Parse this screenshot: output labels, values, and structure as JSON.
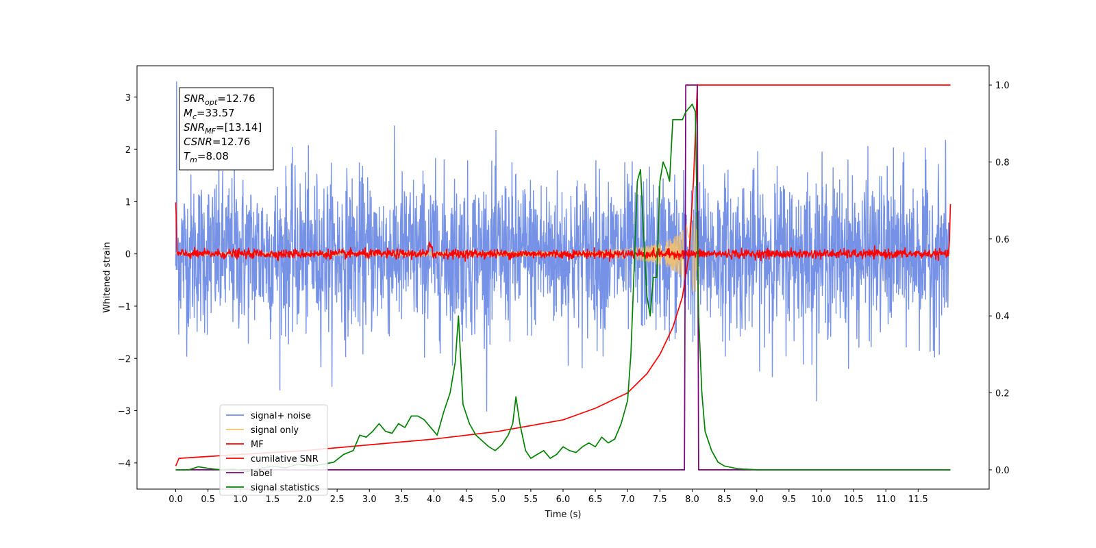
{
  "chart_data": {
    "type": "line",
    "xlabel": "Time (s)",
    "ylabel": "Whitened strain",
    "y2label": "",
    "xlim": [
      -0.6,
      12.6
    ],
    "ylim": [
      -4.5,
      3.6
    ],
    "y2lim": [
      -0.05,
      1.05
    ],
    "x_ticks": [
      0.0,
      0.5,
      1.0,
      1.5,
      2.0,
      2.5,
      3.0,
      3.5,
      4.0,
      4.5,
      5.0,
      5.5,
      6.0,
      6.5,
      7.0,
      7.5,
      8.0,
      8.5,
      9.0,
      9.5,
      10.0,
      10.5,
      11.0,
      11.5
    ],
    "x_tick_labels": [
      "0.0",
      "0.5",
      "1.0",
      "1.5",
      "2.0",
      "2.5",
      "3.0",
      "3.5",
      "4.0",
      "4.5",
      "5.0",
      "5.5",
      "6.0",
      "6.5",
      "7.0",
      "7.5",
      "8.0",
      "8.5",
      "9.0",
      "9.5",
      "10.0",
      "10.5",
      "11.0",
      "11.5"
    ],
    "y_ticks": [
      3,
      2,
      1,
      0,
      -1,
      -2,
      -3,
      -4
    ],
    "y_tick_labels": [
      "3",
      "2",
      "1",
      "0",
      "−1",
      "−2",
      "−3",
      "−4"
    ],
    "y2_ticks": [
      1.0,
      0.8,
      0.6,
      0.4,
      0.2,
      0.0
    ],
    "y2_tick_labels": [
      "1.0",
      "0.8",
      "0.6",
      "0.4",
      "0.2",
      "0.0"
    ],
    "legend_placement": "lower-left",
    "annotation": {
      "lines": [
        {
          "main": "SNR",
          "sub": "opt",
          "value": "=12.76"
        },
        {
          "main": "M",
          "sub": "c",
          "value": "=33.57"
        },
        {
          "main": "SNR",
          "sub": "MF",
          "value": "=[13.14]"
        },
        {
          "main": "CSNR",
          "sub": "",
          "value": "=12.76"
        },
        {
          "main": "T",
          "sub": "m",
          "value": "=8.08"
        }
      ]
    },
    "series": [
      {
        "name": "signal+ noise",
        "color": "#6f8ce6",
        "axis": "left",
        "description_values": {
          "x_range": [
            0,
            11.98
          ],
          "band_min": -3.2,
          "band_max": 3.4,
          "typical_low": -1.3,
          "typical_high": 1.4
        }
      },
      {
        "name": "signal only",
        "color": "#f5c26b",
        "axis": "left",
        "envelope": {
          "x": [
            0,
            6.5,
            7.0,
            7.3,
            7.6,
            7.8,
            7.95,
            8.05,
            8.1,
            12.0
          ],
          "amp": [
            0.03,
            0.05,
            0.1,
            0.15,
            0.25,
            0.4,
            0.6,
            0.8,
            0.0,
            0.0
          ]
        }
      },
      {
        "name": "MF",
        "color": "#ff0000",
        "axis": "left",
        "description_values": {
          "x_range": [
            0,
            12.0
          ],
          "noise_amp": 0.12,
          "start_value": 1.0,
          "end_value": 0.95
        }
      },
      {
        "name": "cumilative SNR",
        "color": "#ff0000",
        "axis": "right",
        "x": [
          0,
          0.05,
          1.0,
          2.0,
          3.0,
          4.0,
          5.0,
          6.0,
          6.5,
          7.0,
          7.3,
          7.5,
          7.7,
          7.85,
          7.95,
          8.02,
          8.08,
          8.1,
          12.0
        ],
        "y": [
          0.01,
          0.03,
          0.04,
          0.05,
          0.065,
          0.08,
          0.1,
          0.13,
          0.16,
          0.2,
          0.25,
          0.3,
          0.37,
          0.45,
          0.56,
          0.75,
          1.0,
          1.0,
          1.0
        ]
      },
      {
        "name": "label",
        "color": "#800080",
        "axis": "right",
        "x": [
          0,
          7.88,
          7.9,
          8.08,
          8.1,
          12.0
        ],
        "y": [
          0,
          0,
          1,
          1,
          0,
          0
        ]
      },
      {
        "name": "signal statistics",
        "color": "#008000",
        "axis": "right",
        "x": [
          0,
          0.2,
          0.35,
          0.5,
          0.7,
          0.9,
          1.1,
          1.3,
          1.5,
          1.7,
          1.9,
          2.1,
          2.3,
          2.45,
          2.6,
          2.75,
          2.85,
          2.95,
          3.05,
          3.15,
          3.25,
          3.35,
          3.45,
          3.55,
          3.65,
          3.75,
          3.85,
          3.95,
          4.05,
          4.15,
          4.25,
          4.33,
          4.38,
          4.45,
          4.55,
          4.65,
          4.75,
          4.85,
          4.95,
          5.05,
          5.15,
          5.22,
          5.27,
          5.33,
          5.42,
          5.5,
          5.6,
          5.7,
          5.8,
          5.9,
          6.0,
          6.1,
          6.2,
          6.3,
          6.4,
          6.5,
          6.6,
          6.7,
          6.8,
          6.9,
          7.0,
          7.05,
          7.1,
          7.15,
          7.2,
          7.25,
          7.3,
          7.35,
          7.4,
          7.45,
          7.5,
          7.55,
          7.6,
          7.65,
          7.7,
          7.75,
          7.8,
          7.85,
          7.9,
          7.95,
          8.0,
          8.05,
          8.1,
          8.15,
          8.2,
          8.3,
          8.4,
          8.5,
          8.7,
          9.0,
          9.5,
          10.0,
          11.0,
          12.0
        ],
        "y": [
          0,
          0,
          0.008,
          0.004,
          0,
          0.002,
          -0.005,
          0.003,
          0.01,
          0.005,
          0.015,
          0.01,
          0.015,
          0.02,
          0.04,
          0.05,
          0.09,
          0.085,
          0.1,
          0.12,
          0.1,
          0.095,
          0.12,
          0.11,
          0.14,
          0.14,
          0.13,
          0.11,
          0.09,
          0.15,
          0.2,
          0.28,
          0.4,
          0.17,
          0.12,
          0.09,
          0.075,
          0.06,
          0.05,
          0.065,
          0.09,
          0.12,
          0.19,
          0.12,
          0.05,
          0.03,
          0.04,
          0.05,
          0.03,
          0.04,
          0.06,
          0.05,
          0.045,
          0.06,
          0.07,
          0.06,
          0.085,
          0.07,
          0.08,
          0.12,
          0.18,
          0.3,
          0.52,
          0.75,
          0.78,
          0.6,
          0.45,
          0.4,
          0.5,
          0.5,
          0.75,
          0.8,
          0.78,
          0.75,
          0.91,
          0.91,
          0.91,
          0.91,
          0.93,
          0.94,
          0.95,
          0.93,
          0.4,
          0.2,
          0.1,
          0.05,
          0.02,
          0.01,
          0.003,
          0,
          0,
          0,
          0,
          0
        ]
      }
    ]
  }
}
